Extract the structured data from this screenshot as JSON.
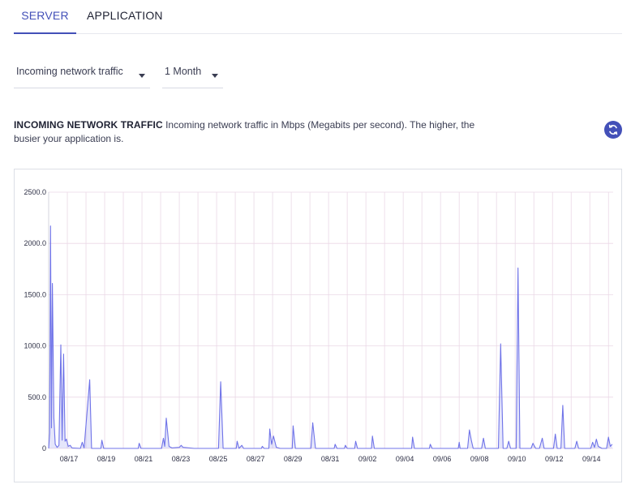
{
  "tabs": [
    {
      "label": "SERVER",
      "active": true
    },
    {
      "label": "APPLICATION",
      "active": false
    }
  ],
  "filters": {
    "metric": "Incoming network traffic",
    "range": "1 Month"
  },
  "description": {
    "title": "INCOMING NETWORK TRAFFIC",
    "text": "Incoming network traffic in Mbps (Megabits per second). The higher, the busier your application is."
  },
  "refresh_icon": "refresh-icon",
  "colors": {
    "accent": "#4350b8",
    "line": "#6f73e8",
    "grid": "#ead8e6"
  },
  "chart_data": {
    "type": "line",
    "title": "",
    "xlabel": "",
    "ylabel": "",
    "ylim": [
      0,
      2500
    ],
    "y_ticks": [
      "0",
      "500.0",
      "1000.0",
      "1500.0",
      "2000.0",
      "2500.0"
    ],
    "x_ticks": [
      "08/17",
      "08/19",
      "08/21",
      "08/23",
      "08/25",
      "08/27",
      "08/29",
      "08/31",
      "09/02",
      "09/04",
      "09/06",
      "09/08",
      "09/10",
      "09/12",
      "09/14"
    ],
    "x_start": "08/16",
    "x_end": "09/14",
    "grid": true,
    "legend": "none",
    "series": [
      {
        "values_note": "x in days after x_start",
        "points": [
          [
            0.0,
            0
          ],
          [
            0.05,
            150
          ],
          [
            0.1,
            2170
          ],
          [
            0.15,
            200
          ],
          [
            0.2,
            1610
          ],
          [
            0.28,
            300
          ],
          [
            0.35,
            40
          ],
          [
            0.45,
            10
          ],
          [
            0.55,
            30
          ],
          [
            0.65,
            1010
          ],
          [
            0.72,
            80
          ],
          [
            0.8,
            920
          ],
          [
            0.88,
            70
          ],
          [
            0.95,
            90
          ],
          [
            1.05,
            20
          ],
          [
            1.15,
            30
          ],
          [
            1.25,
            5
          ],
          [
            1.7,
            0
          ],
          [
            1.8,
            60
          ],
          [
            1.9,
            5
          ],
          [
            2.2,
            670
          ],
          [
            2.3,
            0
          ],
          [
            2.8,
            0
          ],
          [
            2.85,
            80
          ],
          [
            2.95,
            0
          ],
          [
            4.8,
            0
          ],
          [
            4.85,
            50
          ],
          [
            4.95,
            0
          ],
          [
            6.05,
            0
          ],
          [
            6.15,
            100
          ],
          [
            6.22,
            20
          ],
          [
            6.3,
            295
          ],
          [
            6.45,
            20
          ],
          [
            6.6,
            5
          ],
          [
            7.0,
            10
          ],
          [
            7.1,
            30
          ],
          [
            7.2,
            10
          ],
          [
            7.8,
            0
          ],
          [
            9.1,
            0
          ],
          [
            9.22,
            650
          ],
          [
            9.35,
            0
          ],
          [
            10.05,
            0
          ],
          [
            10.1,
            70
          ],
          [
            10.2,
            0
          ],
          [
            10.35,
            30
          ],
          [
            10.45,
            0
          ],
          [
            11.4,
            0
          ],
          [
            11.45,
            20
          ],
          [
            11.55,
            0
          ],
          [
            11.8,
            0
          ],
          [
            11.85,
            190
          ],
          [
            11.95,
            40
          ],
          [
            12.05,
            120
          ],
          [
            12.2,
            10
          ],
          [
            12.4,
            0
          ],
          [
            13.05,
            0
          ],
          [
            13.1,
            220
          ],
          [
            13.22,
            0
          ],
          [
            14.05,
            0
          ],
          [
            14.15,
            250
          ],
          [
            14.3,
            0
          ],
          [
            15.3,
            0
          ],
          [
            15.35,
            40
          ],
          [
            15.45,
            0
          ],
          [
            15.85,
            0
          ],
          [
            15.9,
            30
          ],
          [
            16.0,
            0
          ],
          [
            16.4,
            0
          ],
          [
            16.45,
            70
          ],
          [
            16.55,
            0
          ],
          [
            17.3,
            0
          ],
          [
            17.35,
            120
          ],
          [
            17.45,
            0
          ],
          [
            19.45,
            0
          ],
          [
            19.5,
            110
          ],
          [
            19.6,
            0
          ],
          [
            20.4,
            0
          ],
          [
            20.45,
            40
          ],
          [
            20.55,
            0
          ],
          [
            21.95,
            0
          ],
          [
            22.0,
            60
          ],
          [
            22.05,
            0
          ],
          [
            22.45,
            0
          ],
          [
            22.55,
            180
          ],
          [
            22.65,
            80
          ],
          [
            22.75,
            0
          ],
          [
            23.2,
            0
          ],
          [
            23.3,
            100
          ],
          [
            23.4,
            0
          ],
          [
            24.1,
            0
          ],
          [
            24.22,
            1020
          ],
          [
            24.35,
            0
          ],
          [
            24.55,
            0
          ],
          [
            24.65,
            70
          ],
          [
            24.75,
            0
          ],
          [
            25.05,
            0
          ],
          [
            25.15,
            1760
          ],
          [
            25.25,
            0
          ],
          [
            25.85,
            0
          ],
          [
            25.95,
            50
          ],
          [
            26.1,
            0
          ],
          [
            26.3,
            0
          ],
          [
            26.45,
            100
          ],
          [
            26.55,
            0
          ],
          [
            27.05,
            0
          ],
          [
            27.15,
            140
          ],
          [
            27.25,
            0
          ],
          [
            27.45,
            0
          ],
          [
            27.55,
            420
          ],
          [
            27.65,
            0
          ],
          [
            28.2,
            0
          ],
          [
            28.3,
            70
          ],
          [
            28.4,
            0
          ],
          [
            29.05,
            0
          ],
          [
            29.15,
            60
          ],
          [
            29.25,
            10
          ],
          [
            29.35,
            90
          ],
          [
            29.45,
            20
          ],
          [
            29.65,
            0
          ],
          [
            29.9,
            0
          ],
          [
            30.0,
            110
          ],
          [
            30.1,
            20
          ],
          [
            30.2,
            40
          ]
        ]
      }
    ]
  }
}
